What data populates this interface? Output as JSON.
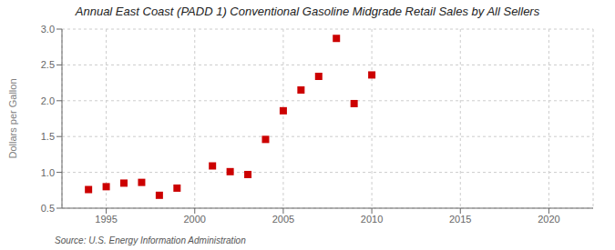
{
  "chart_data": {
    "type": "scatter",
    "title": "Annual East Coast (PADD 1) Conventional Gasoline Midgrade Retail Sales by All Sellers",
    "y_label": "Dollars per Gallon",
    "annotations": [
      "Source: U.S. Energy Information Administration"
    ],
    "x": [
      1994,
      1995,
      1996,
      1997,
      1998,
      1999,
      2001,
      2002,
      2003,
      2004,
      2005,
      2006,
      2007,
      2008,
      2009,
      2010
    ],
    "values": [
      0.76,
      0.8,
      0.85,
      0.86,
      0.68,
      0.78,
      1.09,
      1.01,
      0.97,
      1.46,
      1.86,
      2.15,
      2.34,
      2.87,
      1.96,
      2.36
    ],
    "color": "#cc0000",
    "marker": "square",
    "xlim": [
      1992.5,
      2022.5
    ],
    "ylim": [
      0.5,
      3.0
    ],
    "xticks": [
      1995,
      2000,
      2005,
      2010,
      2015,
      2020
    ],
    "yticks": [
      0.5,
      {
        "value": 1,
        "label": "1.0"
      },
      1.5,
      {
        "value": 2,
        "label": "2.0"
      },
      2.5,
      {
        "value": 3,
        "label": "3.0"
      }
    ],
    "grid": true
  }
}
